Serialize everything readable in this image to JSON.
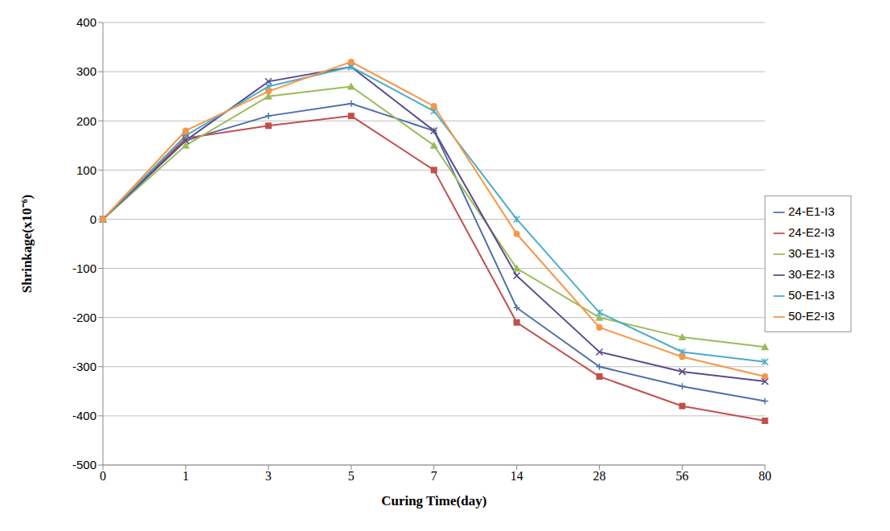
{
  "chart_data": {
    "type": "line",
    "x_label": "Curing Time(day)",
    "y_label": "Shrinkage(x10⁻⁶)",
    "categories": [
      "0",
      "1",
      "3",
      "5",
      "7",
      "14",
      "28",
      "56",
      "80"
    ],
    "series": [
      {
        "name": "24-E1-I3",
        "color": "#4f6fa8",
        "marker": "plus",
        "values": [
          0,
          160,
          210,
          235,
          180,
          -180,
          -300,
          -340,
          -370
        ]
      },
      {
        "name": "24-E2-I3",
        "color": "#c0504d",
        "marker": "square",
        "values": [
          0,
          165,
          190,
          210,
          100,
          -210,
          -320,
          -380,
          -410
        ]
      },
      {
        "name": "30-E1-I3",
        "color": "#9bbb59",
        "marker": "triangle",
        "values": [
          0,
          150,
          250,
          270,
          150,
          -100,
          -200,
          -240,
          -260
        ]
      },
      {
        "name": "30-E2-I3",
        "color": "#5b4a8b",
        "marker": "cross",
        "values": [
          0,
          160,
          280,
          310,
          180,
          -115,
          -270,
          -310,
          -330
        ]
      },
      {
        "name": "50-E1-I3",
        "color": "#4bacc6",
        "marker": "star",
        "values": [
          0,
          170,
          270,
          310,
          220,
          0,
          -190,
          -270,
          -290
        ]
      },
      {
        "name": "50-E2-I3",
        "color": "#f79646",
        "marker": "circle",
        "values": [
          0,
          180,
          260,
          320,
          230,
          -30,
          -220,
          -280,
          -320
        ]
      }
    ],
    "ylim": [
      -500,
      400
    ],
    "yticks": [
      -500,
      -400,
      -300,
      -200,
      -100,
      0,
      100,
      200,
      300,
      400
    ],
    "grid": true,
    "legend": "right"
  }
}
